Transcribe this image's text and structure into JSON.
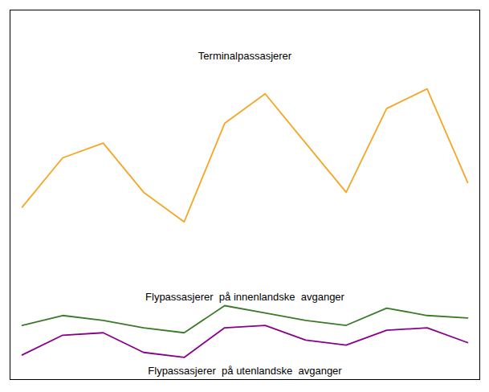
{
  "chart_data": {
    "type": "line",
    "x": [
      0,
      1,
      2,
      3,
      4,
      5,
      6,
      7,
      8,
      9,
      10,
      11
    ],
    "series": [
      {
        "color": "#f5a623",
        "values": [
          5.5,
          6.5,
          6.8,
          5.8,
          5.2,
          7.2,
          7.8,
          6.8,
          5.8,
          7.5,
          7.9,
          6.0
        ]
      },
      {
        "color": "#3a7a2a",
        "values": [
          3.1,
          3.3,
          3.2,
          3.05,
          2.95,
          3.5,
          3.35,
          3.2,
          3.1,
          3.45,
          3.3,
          3.25
        ]
      },
      {
        "color": "#8b008b",
        "values": [
          2.5,
          2.9,
          2.95,
          2.55,
          2.45,
          3.05,
          3.1,
          2.8,
          2.7,
          3.0,
          3.05,
          2.75
        ]
      }
    ],
    "annotations": [
      {
        "text": "Terminalpassasjerer",
        "x": 5.5,
        "y": 8.5
      },
      {
        "text": "Flypassasjerer  på innenlandske  avganger",
        "x": 5.5,
        "y": 3.75
      },
      {
        "text": "Flypassasjerer  på utenlandske  avganger",
        "x": 5.5,
        "y": 2.25
      }
    ],
    "xlim": [
      -0.3,
      11.3
    ],
    "ylim": [
      2.0,
      9.5
    ],
    "xticks": [],
    "yticks": [],
    "grid": false,
    "tick_labels": false
  }
}
